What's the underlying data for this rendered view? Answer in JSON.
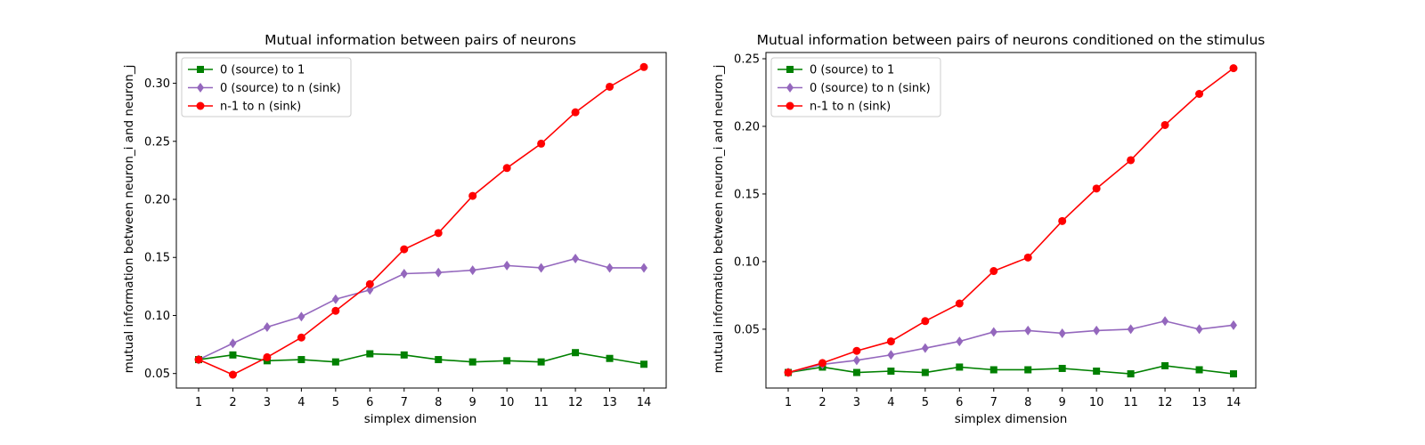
{
  "chart_data": [
    {
      "type": "line",
      "title": "Mutual information between pairs of neurons",
      "xlabel": "simplex dimension",
      "ylabel": "mutual information between neuron_i and neuron_j",
      "x": [
        1,
        2,
        3,
        4,
        5,
        6,
        7,
        8,
        9,
        10,
        11,
        12,
        13,
        14
      ],
      "xlim": [
        0.35,
        14.65
      ],
      "ylim": [
        0.0375,
        0.3265
      ],
      "yticks": [
        0.05,
        0.1,
        0.15,
        0.2,
        0.25,
        0.3
      ],
      "ytick_labels": [
        "0.05",
        "0.10",
        "0.15",
        "0.20",
        "0.25",
        "0.30"
      ],
      "grid": false,
      "legend_position": "upper-left",
      "series": [
        {
          "name": "0 (source) to 1",
          "color": "#008000",
          "marker": "square",
          "values": [
            0.062,
            0.066,
            0.061,
            0.062,
            0.06,
            0.067,
            0.066,
            0.062,
            0.06,
            0.061,
            0.06,
            0.068,
            0.063,
            0.058
          ]
        },
        {
          "name": "0 (source) to n (sink)",
          "color": "#9467bd",
          "marker": "diamond",
          "values": [
            0.062,
            0.076,
            0.09,
            0.099,
            0.114,
            0.122,
            0.136,
            0.137,
            0.139,
            0.143,
            0.141,
            0.149,
            0.141,
            0.141
          ]
        },
        {
          "name": "n-1 to n (sink)",
          "color": "#ff0000",
          "marker": "circle",
          "values": [
            0.062,
            0.049,
            0.064,
            0.081,
            0.104,
            0.127,
            0.157,
            0.171,
            0.203,
            0.227,
            0.248,
            0.275,
            0.297,
            0.314
          ]
        }
      ]
    },
    {
      "type": "line",
      "title": "Mutual information between pairs of neurons conditioned on the stimulus",
      "xlabel": "simplex dimension",
      "ylabel": "mutual information between neuron_i and neuron_j",
      "x": [
        1,
        2,
        3,
        4,
        5,
        6,
        7,
        8,
        9,
        10,
        11,
        12,
        13,
        14
      ],
      "xlim": [
        0.35,
        14.65
      ],
      "ylim": [
        0.0065,
        0.2546
      ],
      "yticks": [
        0.05,
        0.1,
        0.15,
        0.2,
        0.25
      ],
      "ytick_labels": [
        "0.05",
        "0.10",
        "0.15",
        "0.20",
        "0.25"
      ],
      "grid": false,
      "legend_position": "upper-left",
      "series": [
        {
          "name": "0 (source) to 1",
          "color": "#008000",
          "marker": "square",
          "values": [
            0.018,
            0.022,
            0.018,
            0.019,
            0.018,
            0.022,
            0.02,
            0.02,
            0.021,
            0.019,
            0.017,
            0.023,
            0.02,
            0.017
          ]
        },
        {
          "name": "0 (source) to n (sink)",
          "color": "#9467bd",
          "marker": "diamond",
          "values": [
            0.018,
            0.024,
            0.027,
            0.031,
            0.036,
            0.041,
            0.048,
            0.049,
            0.047,
            0.049,
            0.05,
            0.056,
            0.05,
            0.053
          ]
        },
        {
          "name": "n-1 to n (sink)",
          "color": "#ff0000",
          "marker": "circle",
          "values": [
            0.018,
            0.025,
            0.034,
            0.041,
            0.056,
            0.069,
            0.093,
            0.103,
            0.13,
            0.154,
            0.175,
            0.201,
            0.224,
            0.243
          ]
        }
      ]
    }
  ]
}
